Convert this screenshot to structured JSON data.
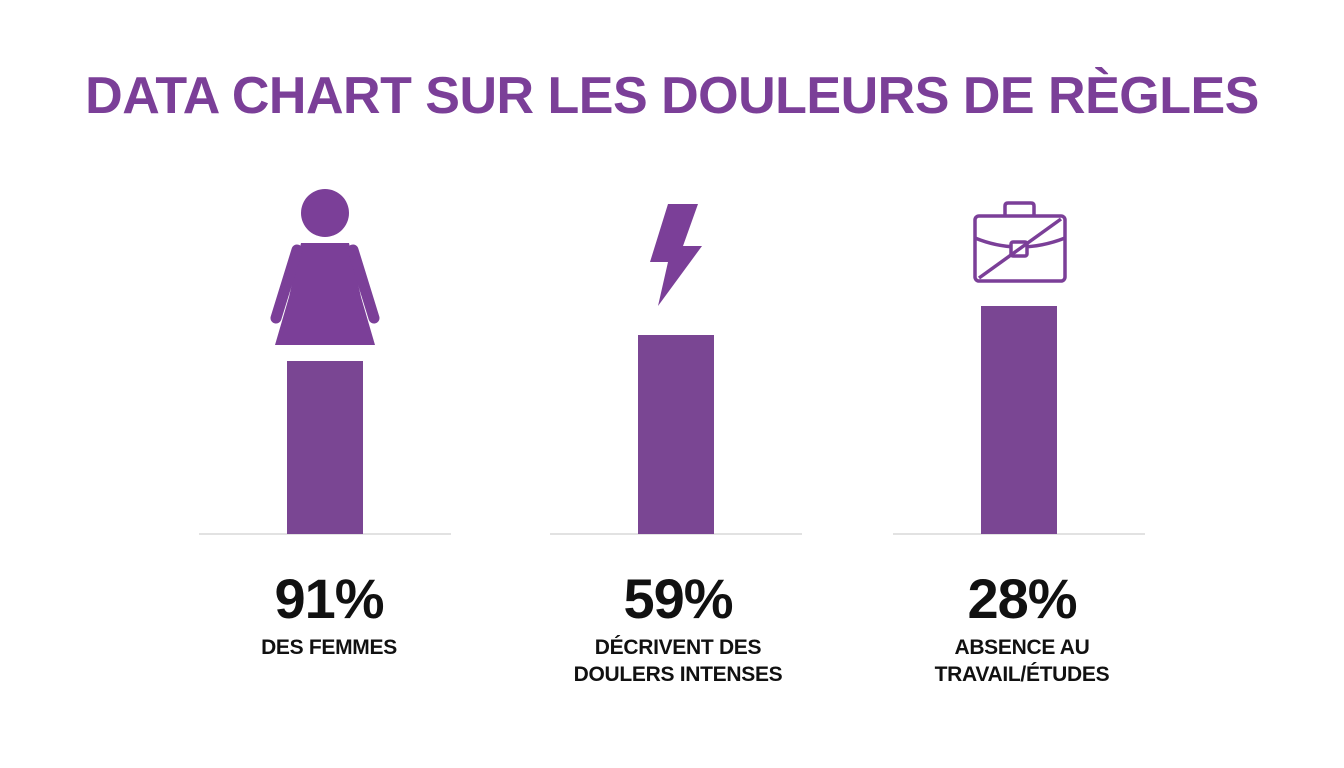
{
  "chart_data": {
    "type": "bar",
    "title": "DATA CHART SUR LES DOULEURS DE RÈGLES",
    "categories": [
      "DES FEMMES",
      "DÉCRIVENT DES DOULERS INTENSES",
      "ABSENCE AU TRAVAIL/ÉTUDES"
    ],
    "values": [
      91,
      59,
      28
    ],
    "value_labels": [
      "91%",
      "59%",
      "28%"
    ],
    "label_lines": [
      [
        "DES FEMMES"
      ],
      [
        "DÉCRIVENT DES",
        "DOULERS INTENSES"
      ],
      [
        "ABSENCE AU",
        "TRAVAIL/ÉTUDES"
      ]
    ],
    "icons": [
      "woman-icon",
      "lightning-bolt-icon",
      "crossed-briefcase-icon"
    ],
    "xlabel": "",
    "ylabel": "",
    "grid": false,
    "legend": "none"
  },
  "colors": {
    "accent": "#7b3f98",
    "bar": "#7a4693",
    "text": "#111111",
    "baseline": "#e2e2e2"
  }
}
